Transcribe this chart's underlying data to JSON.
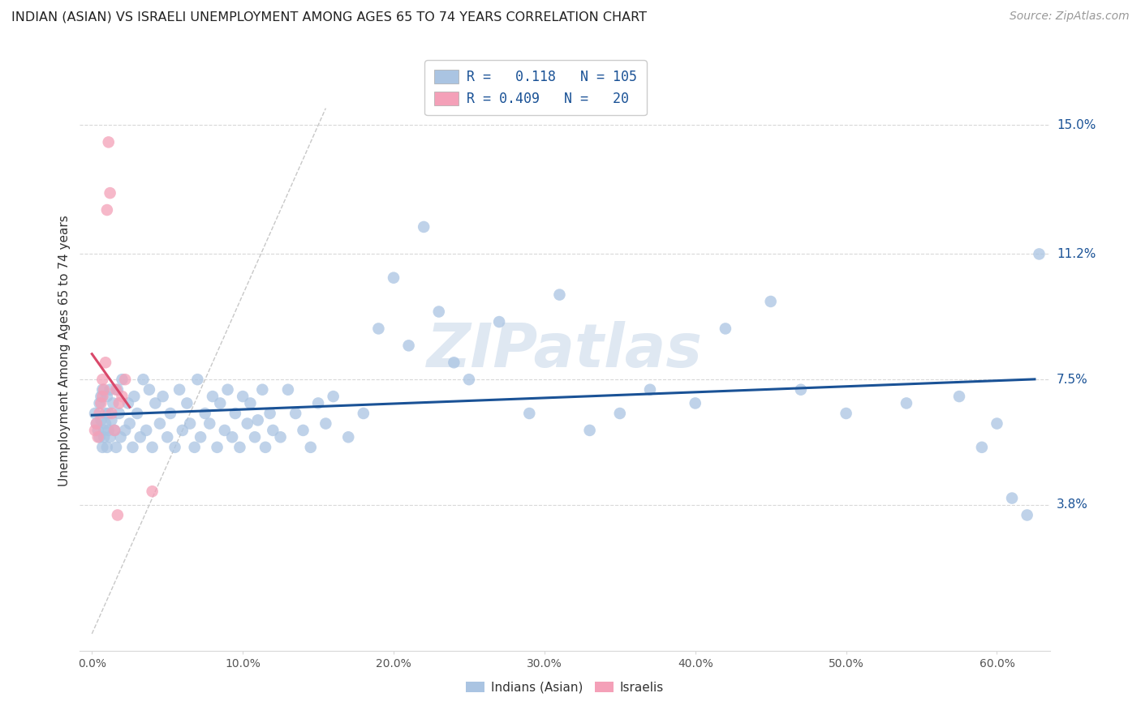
{
  "title": "INDIAN (ASIAN) VS ISRAELI UNEMPLOYMENT AMONG AGES 65 TO 74 YEARS CORRELATION CHART",
  "source": "Source: ZipAtlas.com",
  "ylabel": "Unemployment Among Ages 65 to 74 years",
  "ytick_labels": [
    "3.8%",
    "7.5%",
    "11.2%",
    "15.0%"
  ],
  "ytick_vals": [
    0.038,
    0.075,
    0.112,
    0.15
  ],
  "xtick_labels": [
    "0.0%",
    "10.0%",
    "20.0%",
    "30.0%",
    "40.0%",
    "50.0%",
    "60.0%"
  ],
  "xtick_vals": [
    0.0,
    0.1,
    0.2,
    0.3,
    0.4,
    0.5,
    0.6
  ],
  "ylim": [
    -0.005,
    0.172
  ],
  "xlim": [
    -0.008,
    0.635
  ],
  "legend_indian_r": "0.118",
  "legend_indian_n": "105",
  "legend_israeli_r": "0.409",
  "legend_israeli_n": "20",
  "color_indian": "#aac4e2",
  "color_israeli": "#f4a0b8",
  "color_trendline_indian": "#1a5296",
  "color_trendline_israeli": "#d9486a",
  "color_diagonal": "#c8c8c8",
  "color_grid": "#d8d8d8",
  "watermark": "ZIPatlas",
  "indian_x": [
    0.002,
    0.003,
    0.004,
    0.005,
    0.005,
    0.006,
    0.006,
    0.007,
    0.007,
    0.008,
    0.008,
    0.009,
    0.009,
    0.01,
    0.01,
    0.011,
    0.011,
    0.012,
    0.012,
    0.013,
    0.014,
    0.015,
    0.016,
    0.017,
    0.018,
    0.019,
    0.02,
    0.022,
    0.024,
    0.025,
    0.027,
    0.028,
    0.03,
    0.032,
    0.034,
    0.036,
    0.038,
    0.04,
    0.042,
    0.045,
    0.047,
    0.05,
    0.052,
    0.055,
    0.058,
    0.06,
    0.063,
    0.065,
    0.068,
    0.07,
    0.072,
    0.075,
    0.078,
    0.08,
    0.083,
    0.085,
    0.088,
    0.09,
    0.093,
    0.095,
    0.098,
    0.1,
    0.103,
    0.105,
    0.108,
    0.11,
    0.113,
    0.115,
    0.118,
    0.12,
    0.125,
    0.13,
    0.135,
    0.14,
    0.145,
    0.15,
    0.155,
    0.16,
    0.17,
    0.18,
    0.19,
    0.2,
    0.21,
    0.22,
    0.23,
    0.24,
    0.25,
    0.27,
    0.29,
    0.31,
    0.33,
    0.35,
    0.37,
    0.4,
    0.42,
    0.45,
    0.47,
    0.5,
    0.54,
    0.575,
    0.59,
    0.6,
    0.61,
    0.62,
    0.628
  ],
  "indian_y": [
    0.065,
    0.062,
    0.06,
    0.068,
    0.058,
    0.063,
    0.07,
    0.055,
    0.072,
    0.06,
    0.058,
    0.065,
    0.062,
    0.055,
    0.07,
    0.06,
    0.065,
    0.058,
    0.072,
    0.063,
    0.068,
    0.06,
    0.055,
    0.072,
    0.065,
    0.058,
    0.075,
    0.06,
    0.068,
    0.062,
    0.055,
    0.07,
    0.065,
    0.058,
    0.075,
    0.06,
    0.072,
    0.055,
    0.068,
    0.062,
    0.07,
    0.058,
    0.065,
    0.055,
    0.072,
    0.06,
    0.068,
    0.062,
    0.055,
    0.075,
    0.058,
    0.065,
    0.062,
    0.07,
    0.055,
    0.068,
    0.06,
    0.072,
    0.058,
    0.065,
    0.055,
    0.07,
    0.062,
    0.068,
    0.058,
    0.063,
    0.072,
    0.055,
    0.065,
    0.06,
    0.058,
    0.072,
    0.065,
    0.06,
    0.055,
    0.068,
    0.062,
    0.07,
    0.058,
    0.065,
    0.09,
    0.105,
    0.085,
    0.12,
    0.095,
    0.08,
    0.075,
    0.092,
    0.065,
    0.1,
    0.06,
    0.065,
    0.072,
    0.068,
    0.09,
    0.098,
    0.072,
    0.065,
    0.068,
    0.07,
    0.055,
    0.062,
    0.04,
    0.035,
    0.112
  ],
  "israeli_x": [
    0.002,
    0.003,
    0.004,
    0.005,
    0.006,
    0.007,
    0.007,
    0.008,
    0.009,
    0.01,
    0.011,
    0.012,
    0.013,
    0.015,
    0.016,
    0.017,
    0.018,
    0.02,
    0.022,
    0.04
  ],
  "israeli_y": [
    0.06,
    0.062,
    0.058,
    0.065,
    0.068,
    0.07,
    0.075,
    0.072,
    0.08,
    0.125,
    0.145,
    0.13,
    0.065,
    0.06,
    0.072,
    0.035,
    0.068,
    0.07,
    0.075,
    0.042
  ]
}
